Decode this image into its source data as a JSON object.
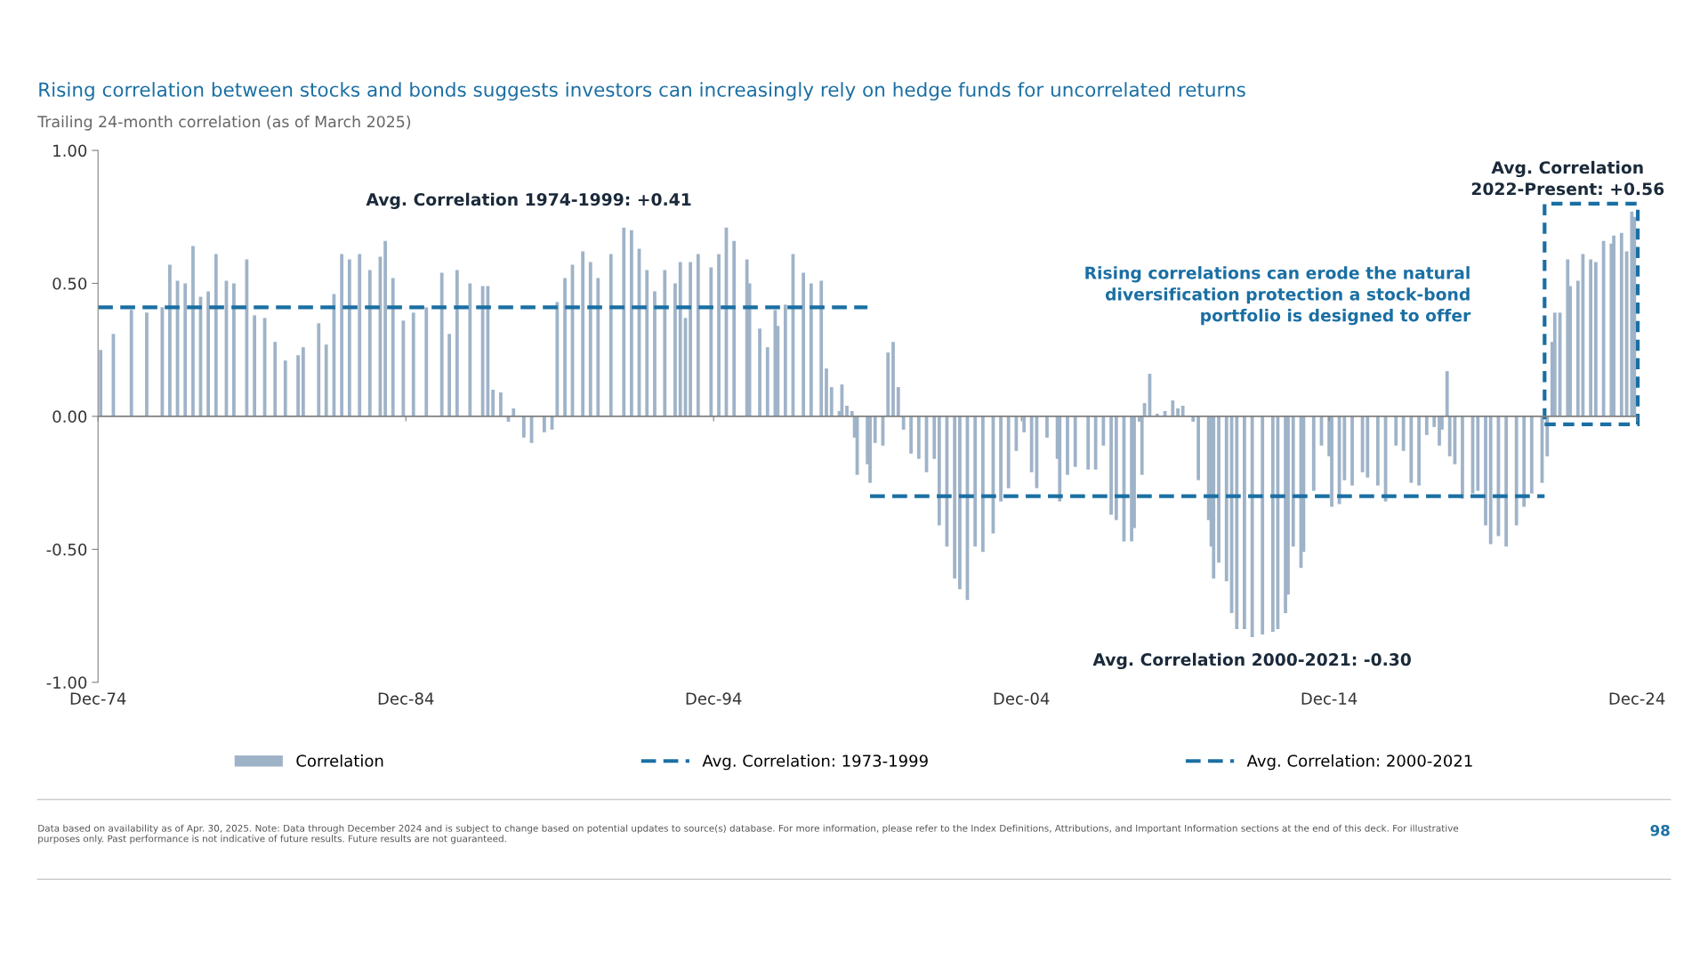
{
  "chart_data": {
    "type": "bar",
    "title": "Rising correlation between stocks and bonds suggests investors can increasingly rely on hedge funds for uncorrelated returns",
    "subtitle": "Trailing 24-month correlation (as of March 2025)",
    "x": [
      "1975-01",
      "1975-06",
      "1976-01",
      "1976-07",
      "1977-01",
      "1977-04",
      "1977-07",
      "1977-10",
      "1978-01",
      "1978-04",
      "1978-07",
      "1978-10",
      "1979-02",
      "1979-05",
      "1979-10",
      "1980-01",
      "1980-05",
      "1980-09",
      "1981-01",
      "1981-06",
      "1981-08",
      "1982-02",
      "1982-05",
      "1982-08",
      "1982-11",
      "1983-02",
      "1983-06",
      "1983-10",
      "1984-02",
      "1984-04",
      "1984-07",
      "1984-11",
      "1985-03",
      "1985-08",
      "1986-02",
      "1986-05",
      "1986-08",
      "1987-01",
      "1987-06",
      "1987-08",
      "1987-10",
      "1988-01",
      "1988-04",
      "1988-06",
      "1988-10",
      "1989-01",
      "1989-06",
      "1989-09",
      "1989-11",
      "1990-02",
      "1990-05",
      "1990-09",
      "1990-12",
      "1991-03",
      "1991-08",
      "1992-01",
      "1992-04",
      "1992-07",
      "1992-10",
      "1993-01",
      "1993-05",
      "1993-09",
      "1993-11",
      "1994-01",
      "1994-03",
      "1994-06",
      "1994-11",
      "1995-02",
      "1995-05",
      "1995-08",
      "1996-01",
      "1996-02",
      "1996-06",
      "1996-09",
      "1996-12",
      "1997-01",
      "1997-04",
      "1997-07",
      "1997-11",
      "1998-02",
      "1998-06",
      "1998-08",
      "1998-10",
      "1999-01",
      "1999-02",
      "1999-04",
      "1999-06",
      "1999-07",
      "1999-08",
      "1999-12",
      "2000-01",
      "2000-03",
      "2000-06",
      "2000-08",
      "2000-10",
      "2000-12",
      "2001-02",
      "2001-05",
      "2001-08",
      "2001-11",
      "2002-02",
      "2002-04",
      "2002-07",
      "2002-10",
      "2002-12",
      "2003-03",
      "2003-06",
      "2003-09",
      "2004-01",
      "2004-04",
      "2004-07",
      "2004-10",
      "2005-01",
      "2005-04",
      "2005-06",
      "2005-10",
      "2006-02",
      "2006-03",
      "2006-06",
      "2006-09",
      "2007-02",
      "2007-05",
      "2007-08",
      "2007-11",
      "2008-01",
      "2008-04",
      "2008-07",
      "2008-08",
      "2008-10",
      "2008-11",
      "2008-12",
      "2009-02",
      "2009-05",
      "2009-08",
      "2009-11",
      "2010-01",
      "2010-03",
      "2010-07",
      "2010-09",
      "2011-01",
      "2011-02",
      "2011-03",
      "2011-05",
      "2011-08",
      "2011-10",
      "2011-12",
      "2012-03",
      "2012-06",
      "2012-10",
      "2013-02",
      "2013-04",
      "2013-07",
      "2013-08",
      "2013-10",
      "2014-01",
      "2014-02",
      "2014-06",
      "2014-09",
      "2014-12",
      "2015-01",
      "2015-04",
      "2015-06",
      "2015-09",
      "2016-01",
      "2016-03",
      "2016-07",
      "2016-10",
      "2017-02",
      "2017-05",
      "2017-08",
      "2017-11",
      "2018-02",
      "2018-05",
      "2018-07",
      "2018-08",
      "2018-10",
      "2018-11",
      "2019-01",
      "2019-04",
      "2019-08",
      "2019-10",
      "2020-01",
      "2020-03",
      "2020-06",
      "2020-09",
      "2021-01",
      "2021-04",
      "2021-07",
      "2021-11",
      "2022-01",
      "2022-03",
      "2022-04",
      "2022-06",
      "2022-09",
      "2022-10",
      "2023-01",
      "2023-03",
      "2023-06",
      "2023-08",
      "2023-11",
      "2024-02",
      "2024-03",
      "2024-06",
      "2024-08",
      "2024-10",
      "2024-11"
    ],
    "series": [
      {
        "name": "Correlation",
        "color": "#9fb3c8",
        "values": [
          0.25,
          0.31,
          0.4,
          0.39,
          0.41,
          0.57,
          0.51,
          0.5,
          0.64,
          0.45,
          0.47,
          0.61,
          0.51,
          0.5,
          0.59,
          0.38,
          0.37,
          0.28,
          0.21,
          0.23,
          0.26,
          0.35,
          0.27,
          0.46,
          0.61,
          0.59,
          0.61,
          0.55,
          0.6,
          0.66,
          0.52,
          0.36,
          0.39,
          0.41,
          0.54,
          0.31,
          0.55,
          0.5,
          0.49,
          0.49,
          0.1,
          0.09,
          -0.02,
          0.03,
          -0.08,
          -0.1,
          -0.06,
          -0.05,
          0.43,
          0.52,
          0.57,
          0.62,
          0.58,
          0.52,
          0.61,
          0.71,
          0.7,
          0.63,
          0.55,
          0.47,
          0.55,
          0.5,
          0.58,
          0.37,
          0.58,
          0.61,
          0.56,
          0.61,
          0.71,
          0.66,
          0.59,
          0.5,
          0.33,
          0.26,
          0.4,
          0.34,
          0.42,
          0.61,
          0.54,
          0.5,
          0.51,
          0.18,
          0.11,
          0.02,
          0.12,
          0.04,
          0.02,
          -0.08,
          -0.22,
          -0.18,
          -0.25,
          -0.1,
          -0.11,
          0.24,
          0.28,
          0.11,
          -0.05,
          -0.14,
          -0.16,
          -0.21,
          -0.16,
          -0.41,
          -0.49,
          -0.61,
          -0.65,
          -0.69,
          -0.49,
          -0.51,
          -0.44,
          -0.32,
          -0.27,
          -0.13,
          -0.06,
          -0.21,
          -0.27,
          -0.08,
          -0.16,
          -0.32,
          -0.22,
          -0.19,
          -0.2,
          -0.2,
          -0.11,
          -0.37,
          -0.39,
          -0.47,
          -0.47,
          -0.42,
          -0.02,
          -0.22,
          0.05,
          0.16,
          0.01,
          0.02,
          0.06,
          0.03,
          0.04,
          -0.02,
          -0.24,
          -0.39,
          -0.49,
          -0.61,
          -0.55,
          -0.62,
          -0.74,
          -0.8,
          -0.8,
          -0.83,
          -0.82,
          -0.81,
          -0.8,
          -0.74,
          -0.67,
          -0.49,
          -0.57,
          -0.51,
          -0.28,
          -0.11,
          -0.15,
          -0.34,
          -0.33,
          -0.24,
          -0.26,
          -0.21,
          -0.23,
          -0.26,
          -0.32,
          -0.11,
          -0.13,
          -0.25,
          -0.26,
          -0.07,
          -0.04,
          -0.11,
          -0.05,
          0.17,
          -0.15,
          -0.18,
          -0.31,
          -0.29,
          -0.28,
          -0.41,
          -0.48,
          -0.45,
          -0.49,
          -0.41,
          -0.34,
          -0.29,
          -0.25,
          -0.15,
          0.28,
          0.39,
          0.39,
          0.59,
          0.49,
          0.51,
          0.61,
          0.59,
          0.58,
          0.66,
          0.65,
          0.68,
          0.69,
          0.62,
          0.77,
          0.75
        ]
      },
      {
        "name": "Avg. Correlation: 1973-1999",
        "type": "line",
        "color": "#1a6fa3",
        "line_style": "dashed",
        "x": [
          "1974-12",
          "1999-12"
        ],
        "values": [
          0.41,
          0.41
        ]
      },
      {
        "name": "Avg. Correlation: 2000-2021",
        "type": "line",
        "color": "#1a6fa3",
        "line_style": "dashed",
        "x": [
          "2000-01",
          "2021-12"
        ],
        "values": [
          -0.3,
          -0.3
        ]
      }
    ],
    "ref_lines": [
      {
        "axis": "y",
        "value": 0,
        "color": "#808080"
      }
    ],
    "xlim": [
      "1974-12",
      "2024-12"
    ],
    "xticks": [
      {
        "value": "1974-12",
        "label": "Dec-74"
      },
      {
        "value": "1984-12",
        "label": "Dec-84"
      },
      {
        "value": "1994-12",
        "label": "Dec-94"
      },
      {
        "value": "2004-12",
        "label": "Dec-04"
      },
      {
        "value": "2014-12",
        "label": "Dec-14"
      },
      {
        "value": "2024-12",
        "label": "Dec-24"
      }
    ],
    "ylim": [
      -1,
      1
    ],
    "yticks": [
      {
        "value": -1,
        "label": "-1.00"
      },
      {
        "value": -0.5,
        "label": "-0.50"
      },
      {
        "value": 0,
        "label": "0.00"
      },
      {
        "value": 0.5,
        "label": "0.50"
      },
      {
        "value": 1,
        "label": "1.00"
      }
    ],
    "grid": false,
    "legend": "bottom",
    "annotations": [
      "Avg. Correlation 1974-1999: +0.41",
      "Avg. Correlation\n2022-Present: +0.56",
      "Rising correlations can erode the natural\ndiversification protection a stock-bond\nportfolio is designed to offer",
      "Avg. Correlation 2000-2021: -0.30",
      "Data based on availability as of Apr. 30, 2025. Note: Data through December 2024 and is subject to change based on potential updates to source(s) database. For more information, please refer to the Index Definitions, Attributions, and Important Information sections at the end of this deck. For illustrative purposes only. Past performance is not indicative of future results. Future results are not guaranteed.",
      "98"
    ]
  }
}
